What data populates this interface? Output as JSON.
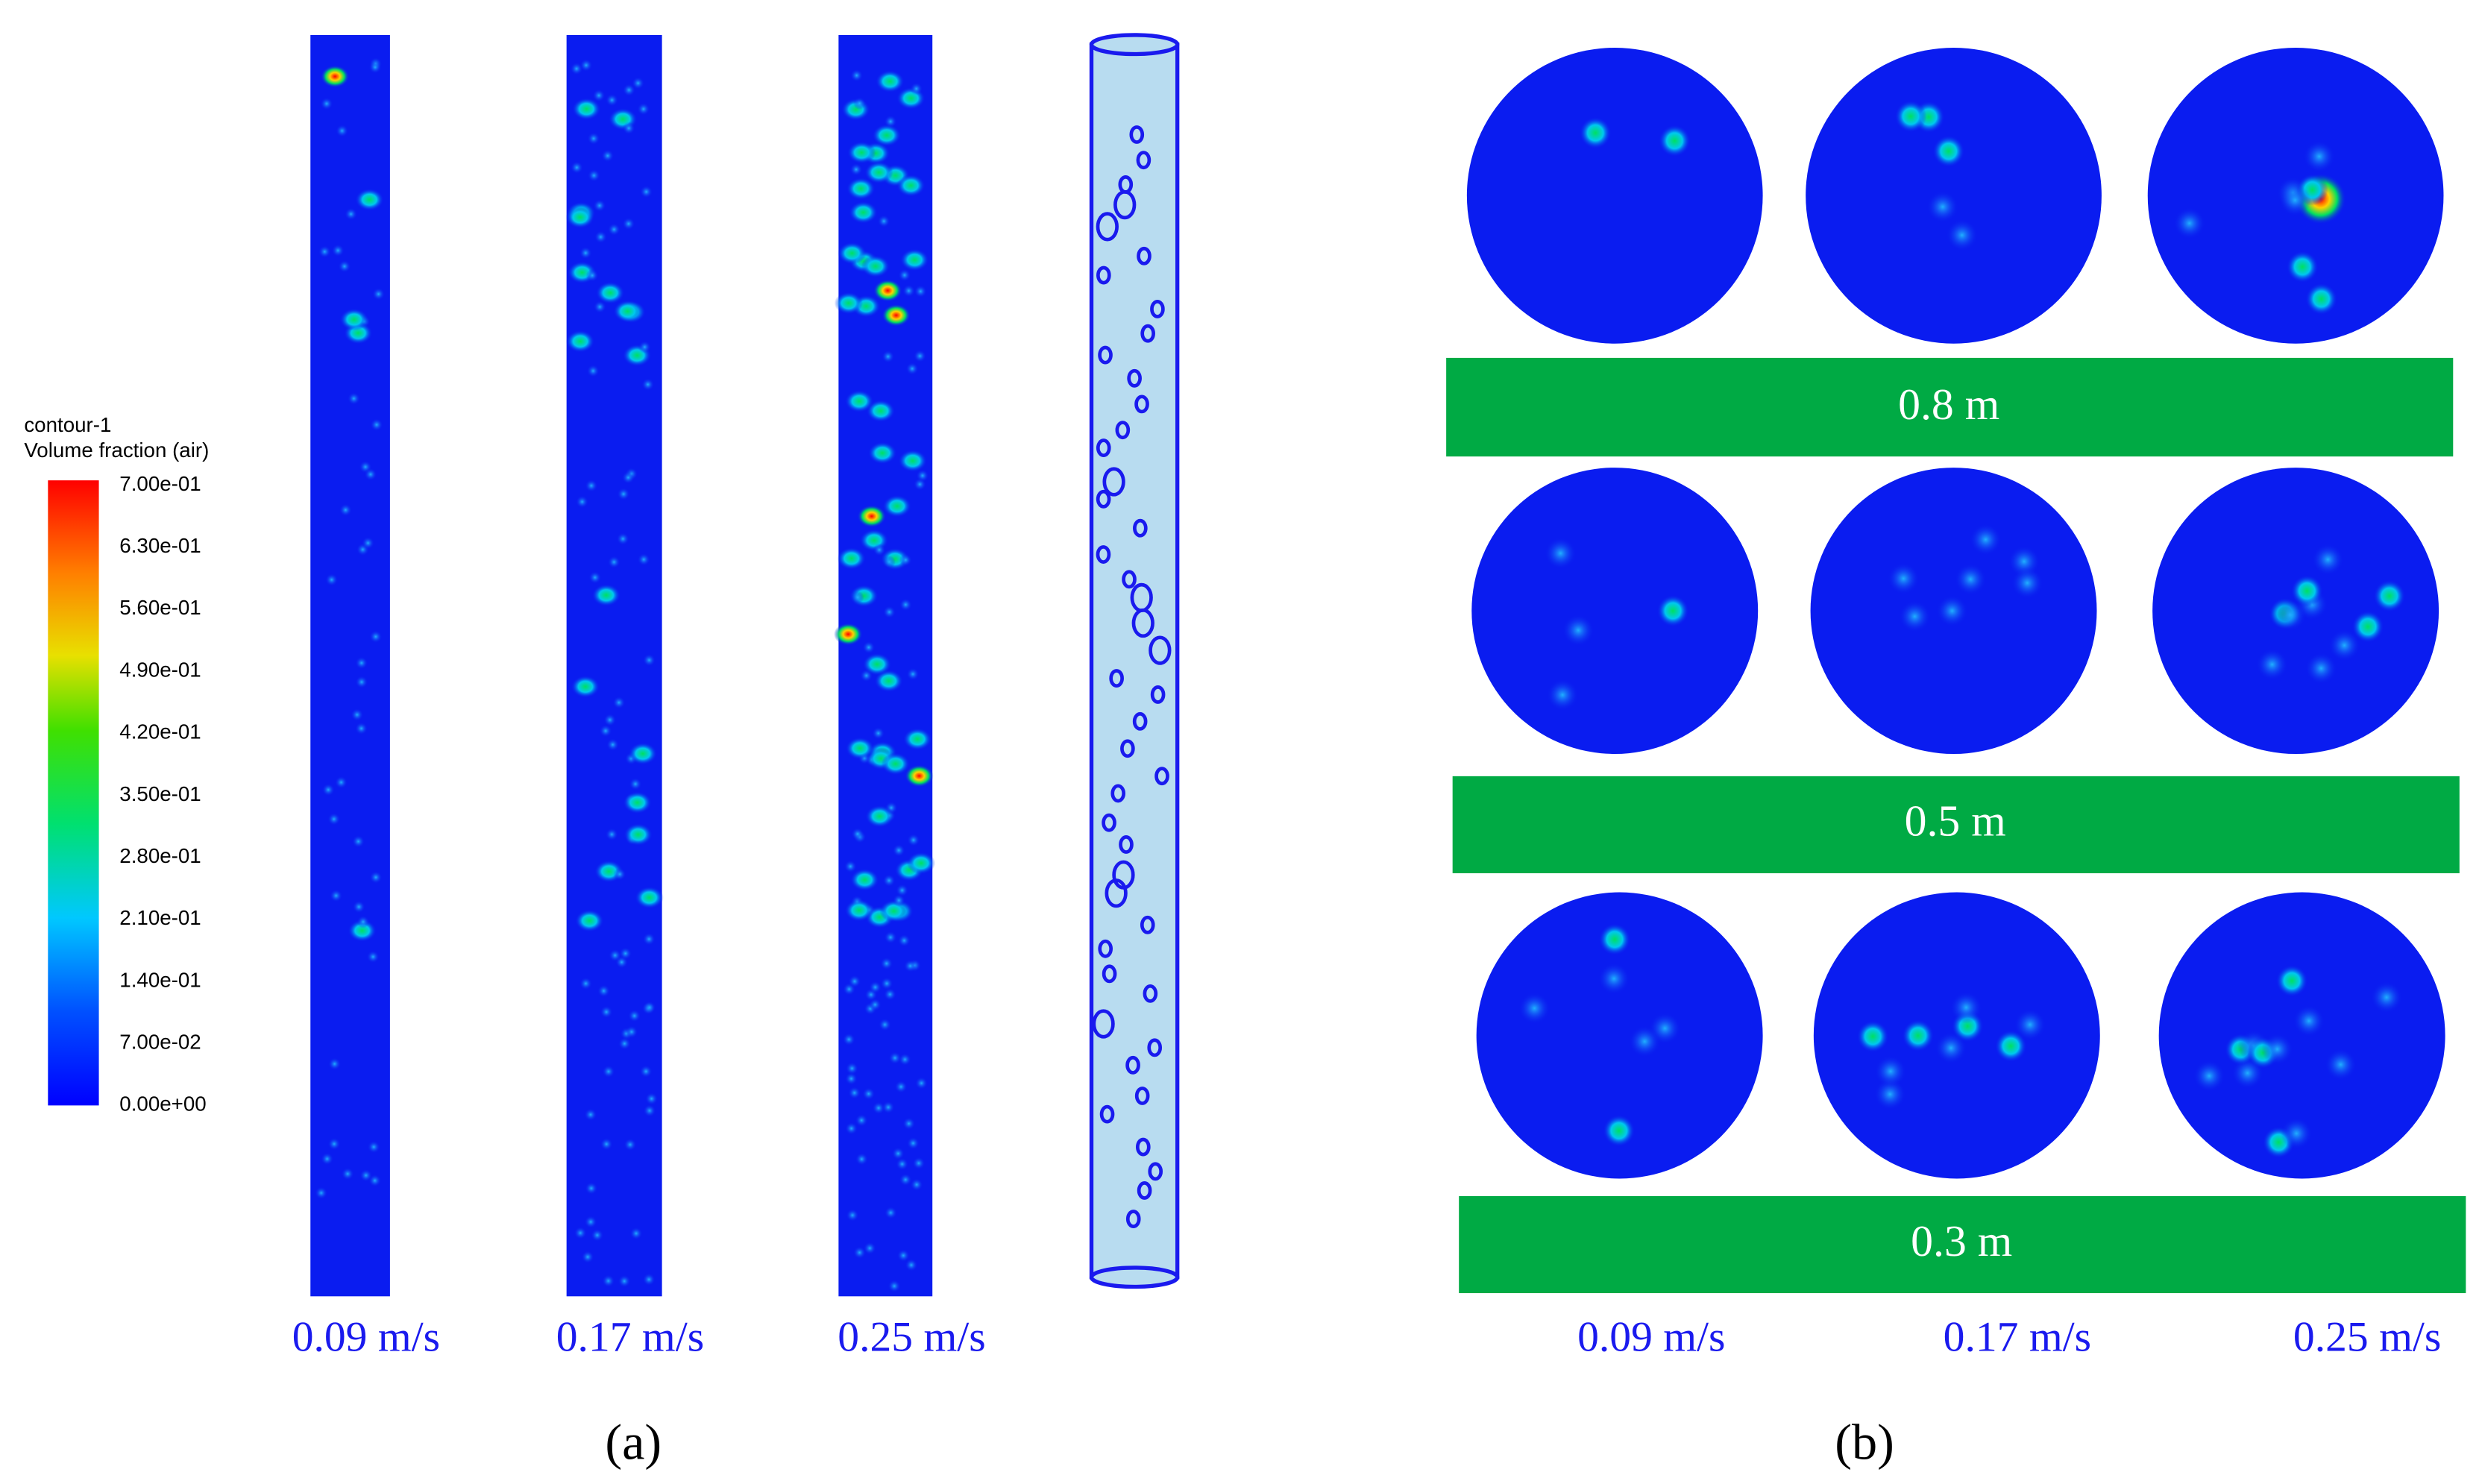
{
  "panel_a": {
    "label": "(a)",
    "colorbar": {
      "title": "contour-1",
      "subtitle": "Volume fraction (air)",
      "ticks": [
        "7.00e-01",
        "6.30e-01",
        "5.60e-01",
        "4.90e-01",
        "4.20e-01",
        "3.50e-01",
        "2.80e-01",
        "2.10e-01",
        "1.40e-01",
        "7.00e-02",
        "0.00e+00"
      ]
    },
    "velocities": [
      "0.09 m/s",
      "0.17 m/s",
      "0.25 m/s"
    ]
  },
  "panel_b": {
    "label": "(b)",
    "heights": [
      "0.8 m",
      "0.5 m",
      "0.3 m"
    ],
    "velocities": [
      "0.09 m/s",
      "0.17 m/s",
      "0.25 m/s"
    ]
  }
}
